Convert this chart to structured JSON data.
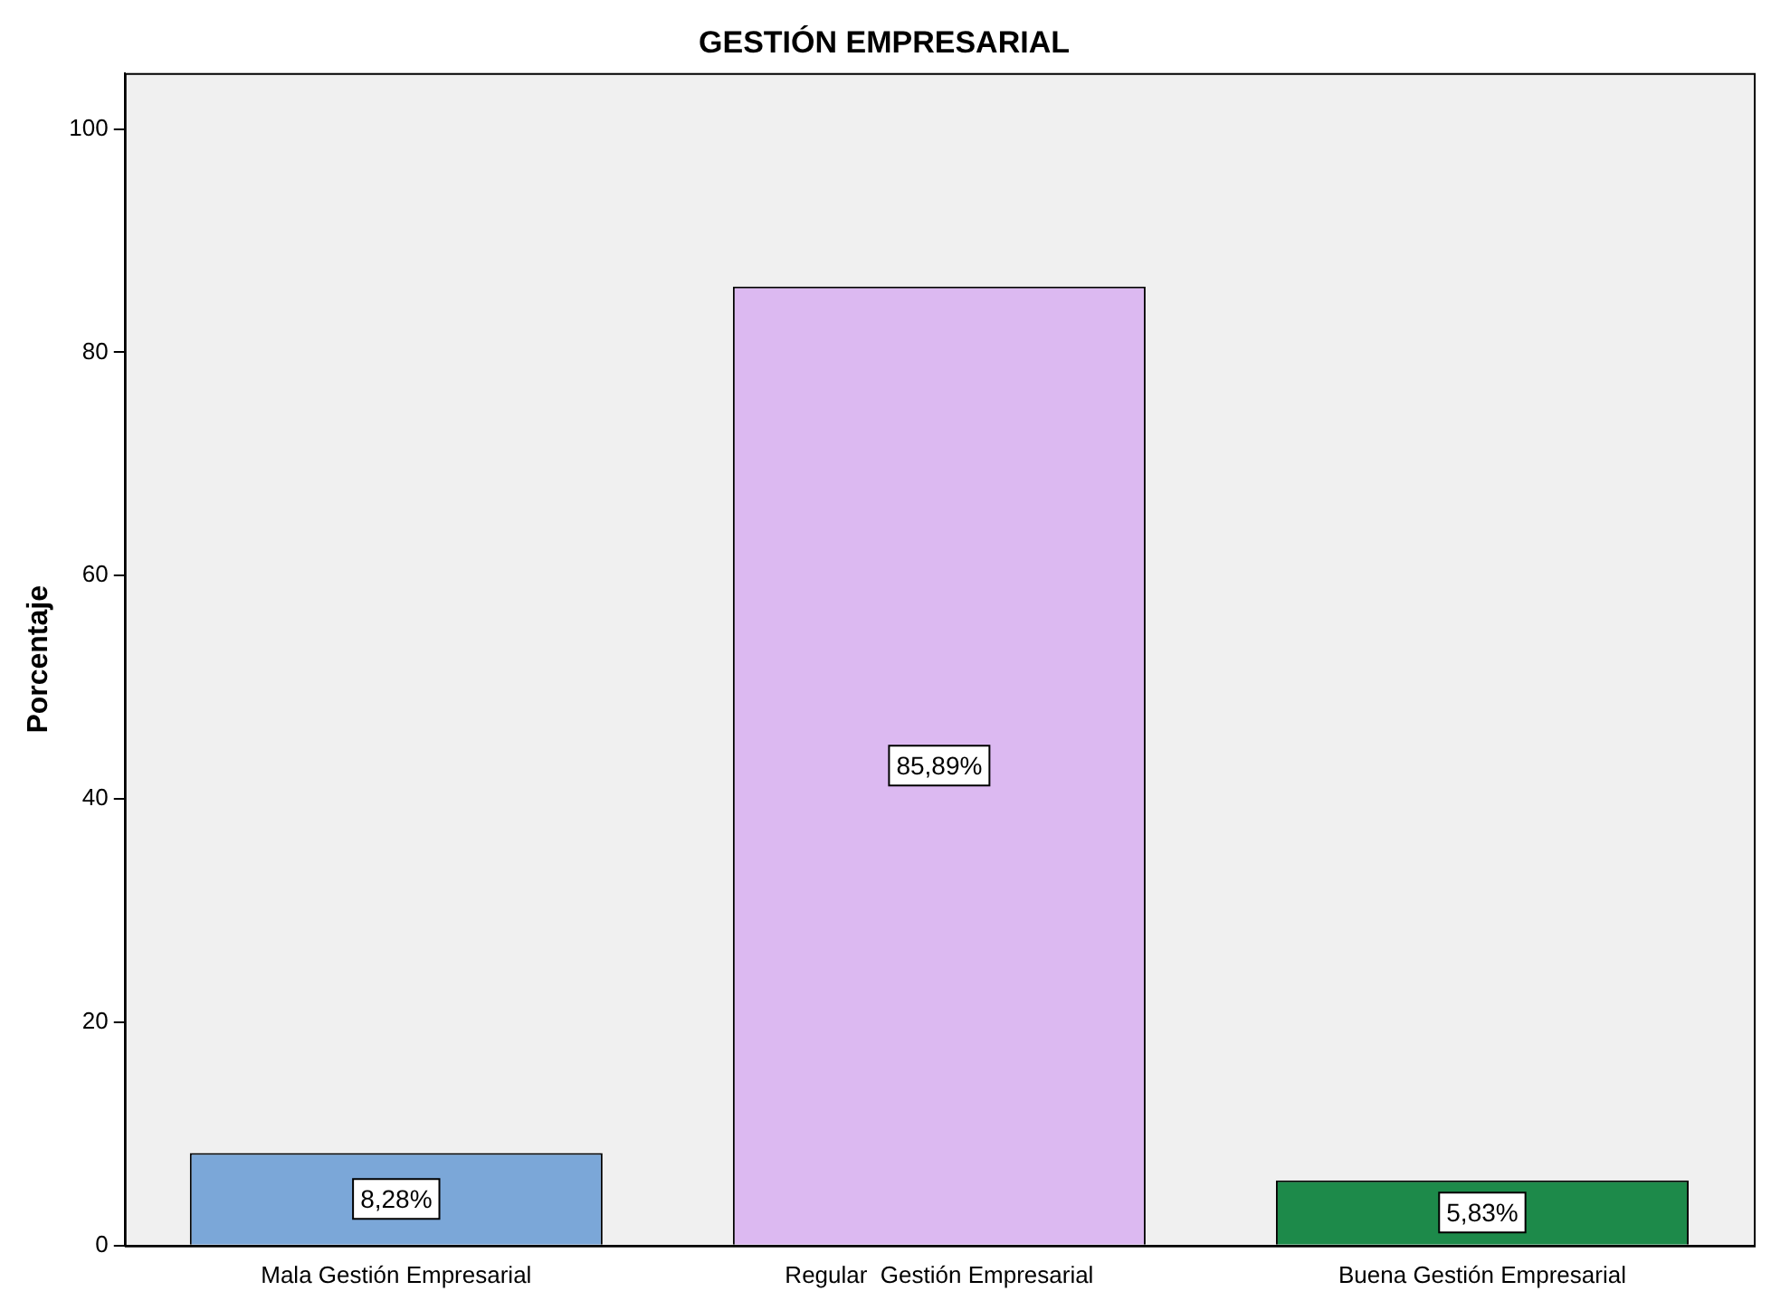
{
  "chart_data": {
    "type": "bar",
    "title": "GESTIÓN EMPRESARIAL",
    "ylabel": "Porcentaje",
    "categories": [
      "Mala Gestión Empresarial",
      "Regular  Gestión Empresarial",
      "Buena Gestión Empresarial"
    ],
    "values": [
      8.28,
      85.89,
      5.83
    ],
    "value_labels": [
      "8,28%",
      "85,89%",
      "5,83%"
    ],
    "colors": [
      "#7ba7d8",
      "#dcb9f1",
      "#1d8a4a"
    ],
    "ylim": [
      0,
      105
    ],
    "yticks": [
      0,
      20,
      40,
      60,
      80,
      100
    ],
    "grid": false,
    "legend": false
  }
}
